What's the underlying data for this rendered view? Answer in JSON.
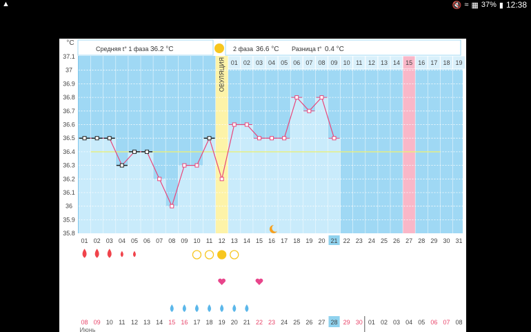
{
  "status_bar": {
    "left_icon": "android-icon",
    "battery": "37%",
    "time": "12:38",
    "icons": [
      "mute-icon",
      "wifi-icon",
      "signal-icon",
      "battery-icon"
    ]
  },
  "header": {
    "unit": "°C",
    "phase1_label": "Средняя t° 1 фаза",
    "phase1_value": "36.2 °C",
    "phase2_label": "2 фаза",
    "phase2_value": "36.6 °C",
    "diff_label": "Разница t°",
    "diff_value": "0.4 °C",
    "ovulation_label": "ОВУЛЯЦИЯ",
    "phase2_days": [
      "01",
      "02",
      "03",
      "04",
      "05",
      "06",
      "07",
      "08",
      "09",
      "10",
      "11",
      "12",
      "13",
      "14",
      "15",
      "16",
      "17",
      "18",
      "19"
    ],
    "highlight_day": "15"
  },
  "colors": {
    "phase1": "#9fd8f4",
    "phase2": "#9fd8f4",
    "filled": "#c9ebfb",
    "ovulation": "#fdf3a8",
    "pink_col": "#f9b7c8",
    "line": "#e8457a",
    "coverline": "#e9f07a",
    "menses": "#f0434b",
    "sun": "#f7c61f",
    "moon": "#f7a01f",
    "heart": "#e8458b",
    "drop": "#5bb7ea",
    "weekend": "#e8456a",
    "today_bg": "#8fd2ee"
  },
  "chart_data": {
    "type": "line",
    "ylim": [
      35.8,
      37.1
    ],
    "yticks": [
      "37.1",
      "37",
      "36.9",
      "36.8",
      "36.7",
      "36.6",
      "36.5",
      "36.4",
      "36.3",
      "36.2",
      "36.1",
      "36",
      "35.9",
      "35.8"
    ],
    "cycle_days": [
      "01",
      "02",
      "03",
      "04",
      "05",
      "06",
      "07",
      "08",
      "09",
      "10",
      "11",
      "12",
      "13",
      "14",
      "15",
      "16",
      "17",
      "18",
      "19",
      "20",
      "21",
      "22",
      "23",
      "24",
      "25",
      "26",
      "27",
      "28",
      "29",
      "30",
      "31"
    ],
    "series": [
      {
        "values": [
          36.5,
          36.5,
          36.5,
          36.3,
          36.4,
          36.4,
          36.2,
          36.0,
          36.3,
          36.3,
          36.5,
          36.2,
          36.6,
          36.6,
          36.5,
          36.5,
          36.5,
          36.8,
          36.7,
          36.8,
          36.5
        ]
      }
    ],
    "phase1_markers": [
      1,
      2,
      3,
      4,
      5,
      6,
      11
    ],
    "coverline": 36.4,
    "ovulation_day": 12,
    "pink_day": 27,
    "today_day": 21,
    "moon_day": 16
  },
  "symbols": {
    "menses": [
      {
        "day": 1,
        "size": "large"
      },
      {
        "day": 2,
        "size": "large"
      },
      {
        "day": 3,
        "size": "large"
      },
      {
        "day": 4,
        "size": "small"
      },
      {
        "day": 5,
        "size": "small"
      }
    ],
    "ovulation_circles": [
      {
        "day": 10,
        "filled": false
      },
      {
        "day": 11,
        "filled": false
      },
      {
        "day": 12,
        "filled": true
      },
      {
        "day": 13,
        "filled": false
      }
    ],
    "hearts": [
      12,
      15
    ],
    "drops": [
      8,
      9,
      10,
      11,
      12,
      13,
      14
    ]
  },
  "dates": {
    "row": [
      "08",
      "09",
      "10",
      "11",
      "12",
      "13",
      "14",
      "15",
      "16",
      "17",
      "18",
      "19",
      "20",
      "21",
      "22",
      "23",
      "24",
      "25",
      "26",
      "27",
      "28",
      "29",
      "30",
      "01",
      "02",
      "03",
      "04",
      "05",
      "06",
      "07",
      "08"
    ],
    "weekend_idx": [
      0,
      1,
      7,
      8,
      14,
      15,
      21,
      22,
      28,
      29
    ],
    "today_idx": 20,
    "partial_label": "Июнь"
  }
}
